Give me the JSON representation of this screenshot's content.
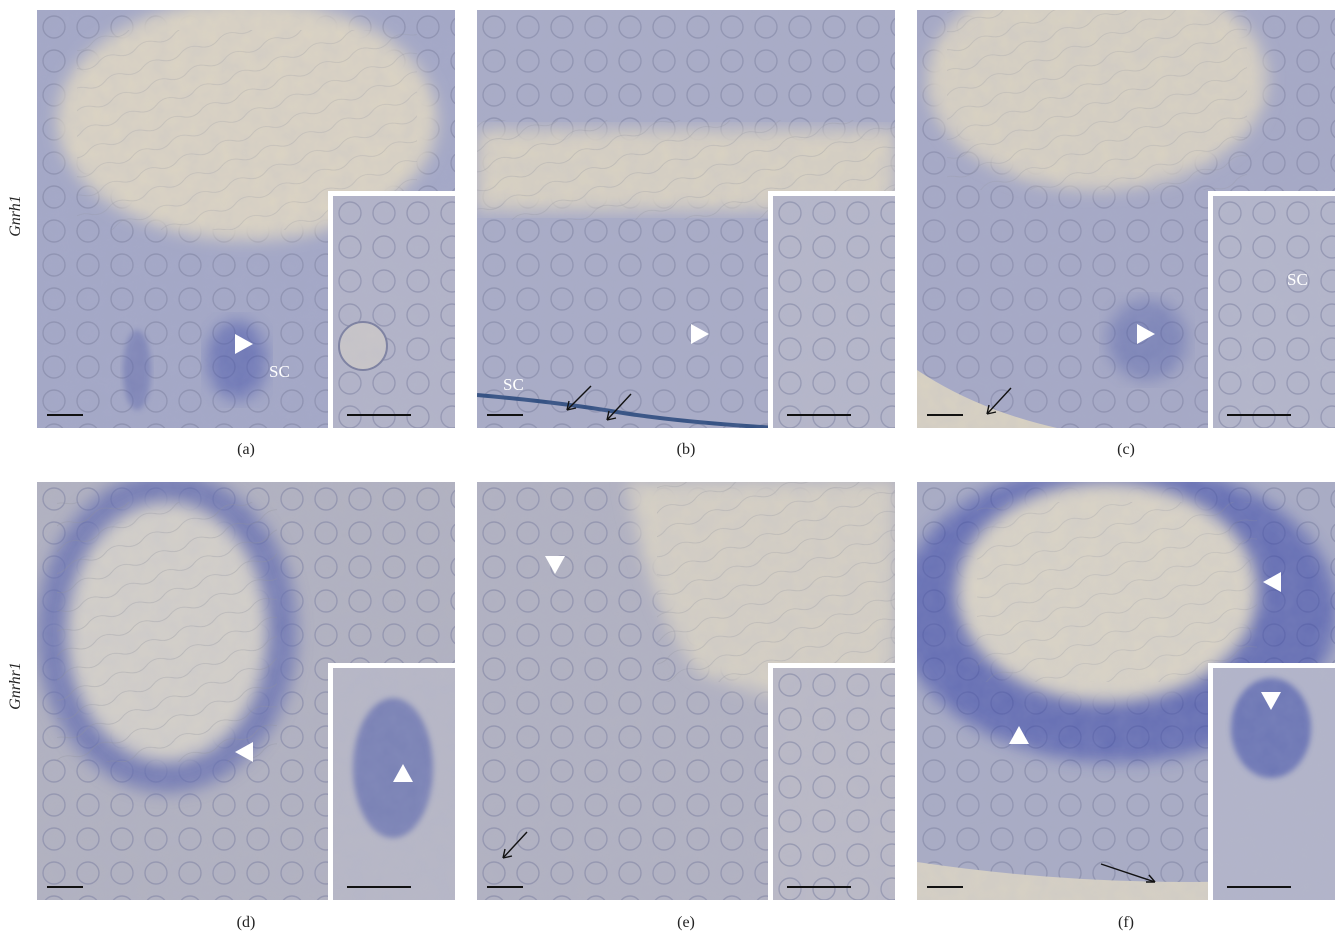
{
  "rows": [
    {
      "label": "Gnrh1"
    },
    {
      "label": "Gnrhr1"
    }
  ],
  "panels": [
    {
      "caption": "(a)",
      "annotation": "SC"
    },
    {
      "caption": "(b)",
      "annotation": "SC"
    },
    {
      "caption": "(c)",
      "annotation": "SC"
    },
    {
      "caption": "(d)"
    },
    {
      "caption": "(e)"
    },
    {
      "caption": "(f)"
    }
  ],
  "colors": {
    "lumen": "#d9d2c2",
    "tissue": "#a8acc6",
    "stain": "#3b4aa8",
    "background": "#ffffff"
  }
}
